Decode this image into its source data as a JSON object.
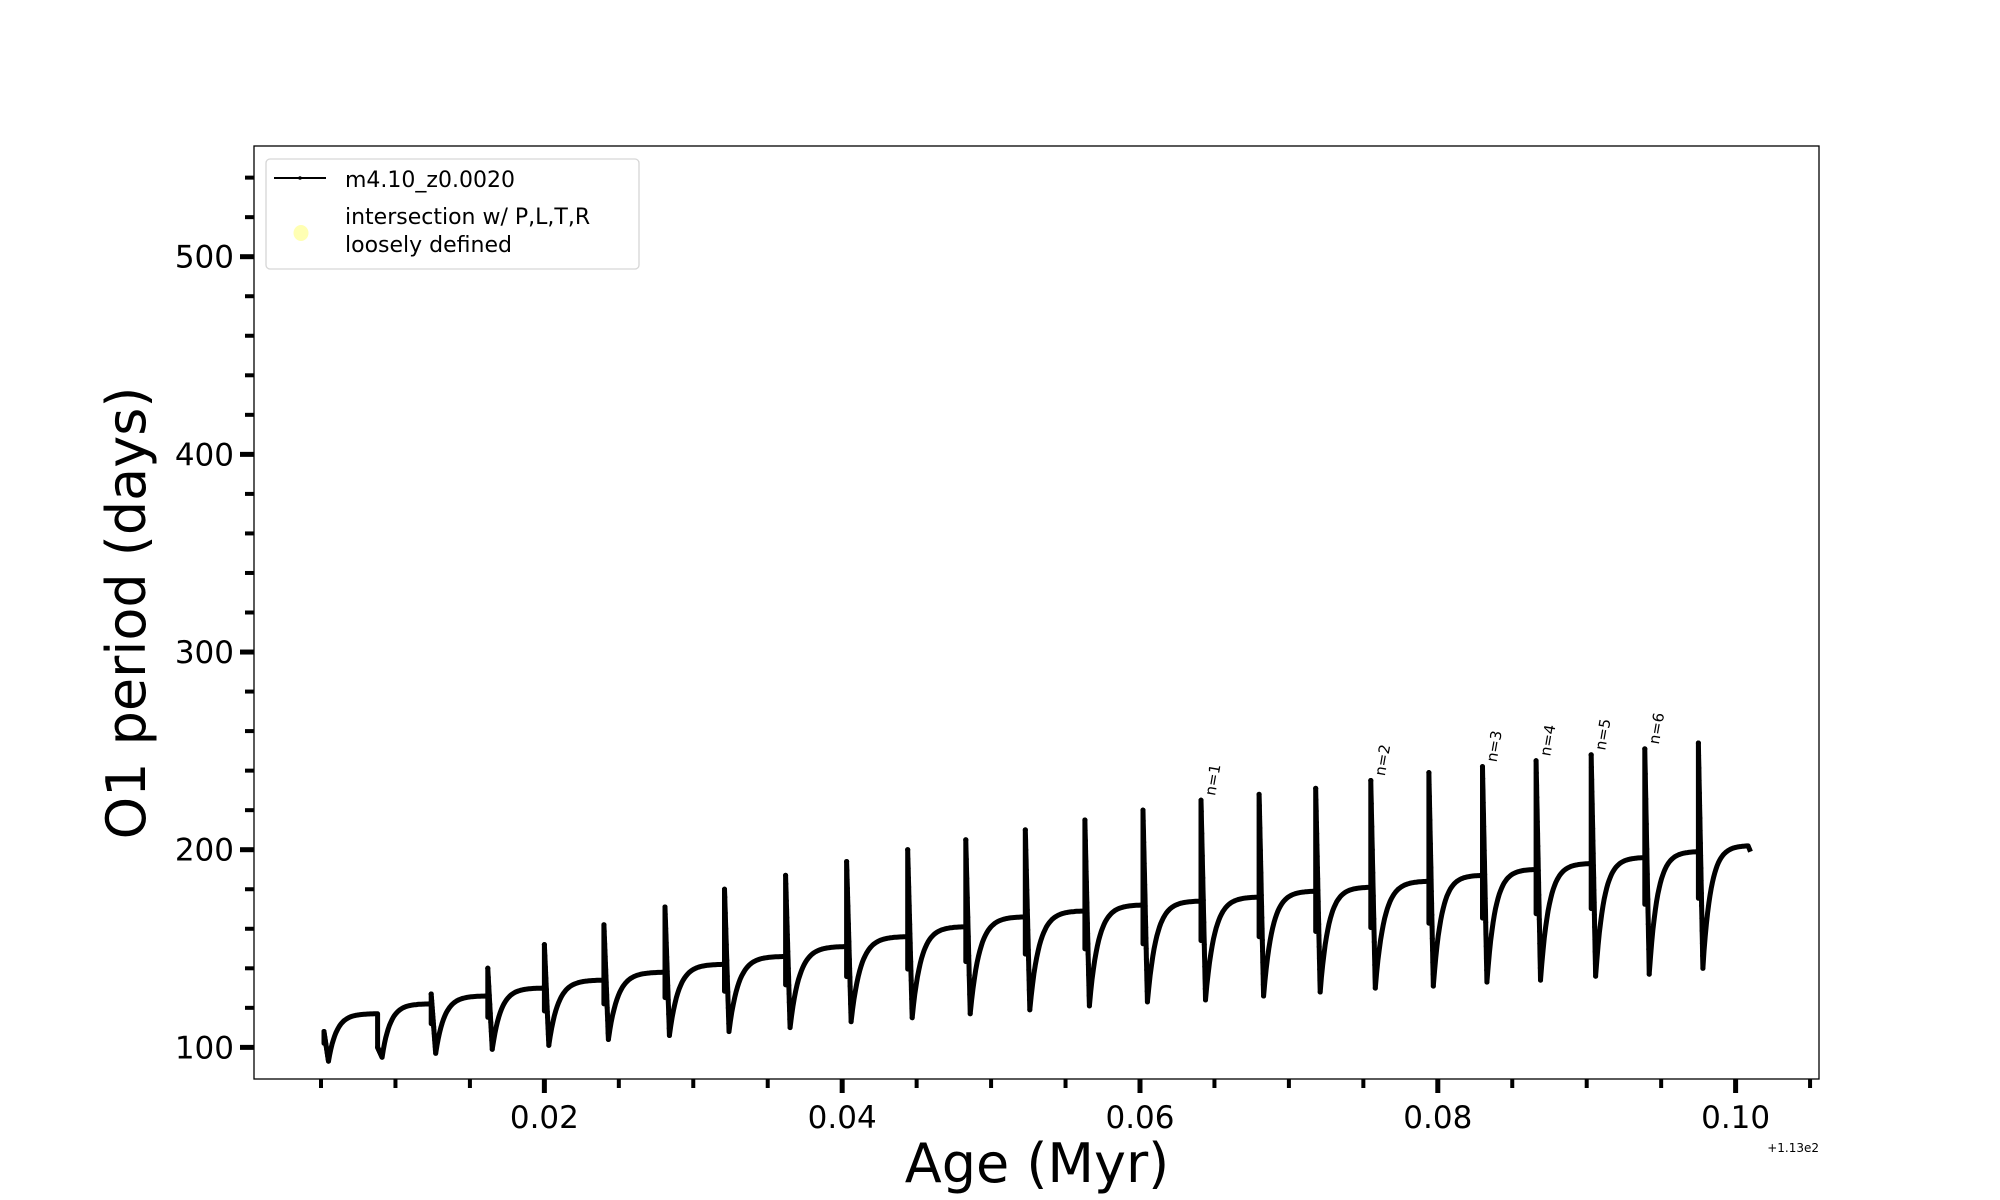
{
  "chart_data": {
    "type": "line",
    "xlabel": "Age (Myr)",
    "ylabel": "O1 period (days)",
    "x_offset_label": "+1.13e2",
    "xlim": [
      0.0005,
      0.1056
    ],
    "ylim": [
      84,
      556
    ],
    "xticks": [
      0.02,
      0.04,
      0.06,
      0.08,
      0.1
    ],
    "xtick_labels": [
      "0.02",
      "0.04",
      "0.06",
      "0.08",
      "0.10"
    ],
    "yticks": [
      100,
      200,
      300,
      400,
      500
    ],
    "ytick_labels": [
      "100",
      "200",
      "300",
      "400",
      "500"
    ],
    "legend": {
      "placement": "top-left",
      "entries": [
        {
          "label": "m4.10_z0.0020",
          "color": "#000000",
          "marker": "line"
        },
        {
          "label": "intersection w/ P,L,T,R\nloosely defined",
          "label_lines": [
            "intersection w/ P,L,T,R",
            "loosely defined"
          ],
          "color": "#ffffb3",
          "marker": "circle"
        }
      ]
    },
    "series": [
      {
        "name": "m4.10_z0.0020",
        "color": "#000000",
        "start_age": 0.0052,
        "end_age": 0.101,
        "end_value": 199,
        "pulse_ages": [
          0.0052,
          0.0088,
          0.0124,
          0.0162,
          0.02,
          0.024,
          0.0281,
          0.0321,
          0.0362,
          0.0403,
          0.0444,
          0.0483,
          0.0523,
          0.0563,
          0.0602,
          0.0641,
          0.068,
          0.0718,
          0.0755,
          0.0794,
          0.083,
          0.0866,
          0.0903,
          0.0939,
          0.0975
        ],
        "pulse_peaks": [
          108,
          100,
          127,
          140,
          152,
          162,
          171,
          180,
          187,
          194,
          200,
          205,
          210,
          215,
          220,
          225,
          228,
          231,
          235,
          239,
          242,
          245,
          248,
          251,
          254
        ],
        "post_pulse_min": [
          93,
          95,
          97,
          99,
          101,
          104,
          106,
          108,
          110,
          113,
          115,
          117,
          119,
          121,
          123,
          124,
          126,
          128,
          130,
          131,
          133,
          134,
          136,
          137,
          140
        ],
        "plateau": [
          117,
          122,
          126,
          130,
          134,
          138,
          142,
          146,
          151,
          156,
          161,
          166,
          169,
          172,
          174,
          176,
          179,
          181,
          184,
          187,
          190,
          193,
          196,
          199,
          202
        ]
      }
    ],
    "annotations": [
      {
        "text": "n=1",
        "age": 0.0641,
        "value": 225
      },
      {
        "text": "n=2",
        "age": 0.0755,
        "value": 235
      },
      {
        "text": "n=3",
        "age": 0.083,
        "value": 242
      },
      {
        "text": "n=4",
        "age": 0.0866,
        "value": 245
      },
      {
        "text": "n=5",
        "age": 0.0903,
        "value": 248
      },
      {
        "text": "n=6",
        "age": 0.0939,
        "value": 251
      }
    ]
  }
}
